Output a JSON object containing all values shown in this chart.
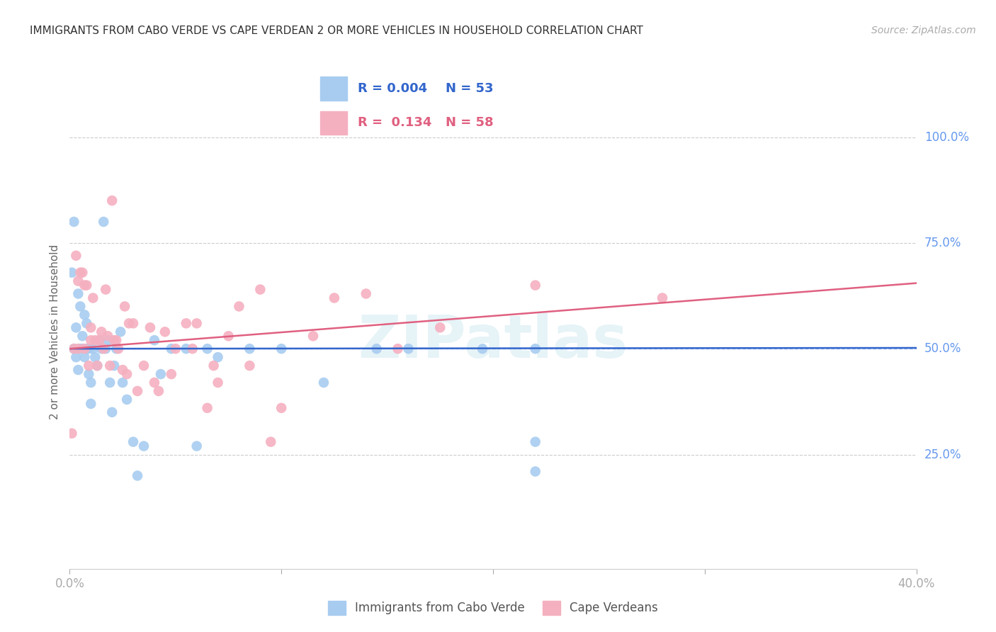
{
  "title": "IMMIGRANTS FROM CABO VERDE VS CAPE VERDEAN 2 OR MORE VEHICLES IN HOUSEHOLD CORRELATION CHART",
  "source": "Source: ZipAtlas.com",
  "ylabel": "2 or more Vehicles in Household",
  "ytick_labels": [
    "100.0%",
    "75.0%",
    "50.0%",
    "25.0%"
  ],
  "ytick_values": [
    1.0,
    0.75,
    0.5,
    0.25
  ],
  "xlim": [
    0.0,
    0.4
  ],
  "ylim": [
    -0.02,
    1.1
  ],
  "series1_label": "Immigrants from Cabo Verde",
  "series1_R": "0.004",
  "series1_N": "53",
  "series1_color": "#A8CCF0",
  "series1_line_color": "#3366CC",
  "series2_label": "Cape Verdeans",
  "series2_R": "0.134",
  "series2_N": "58",
  "series2_color": "#F5B0C0",
  "series2_line_color": "#E06080",
  "background_color": "#ffffff",
  "grid_color": "#cccccc",
  "axis_label_color": "#6699EE",
  "title_color": "#333333",
  "watermark": "ZIPatlas",
  "series1_line_y0": 0.5,
  "series1_line_y1": 0.502,
  "series2_line_y0": 0.5,
  "series2_line_y1": 0.655,
  "series1_x": [
    0.001,
    0.002,
    0.002,
    0.003,
    0.003,
    0.004,
    0.004,
    0.005,
    0.005,
    0.006,
    0.006,
    0.007,
    0.007,
    0.008,
    0.008,
    0.009,
    0.009,
    0.01,
    0.01,
    0.011,
    0.012,
    0.013,
    0.014,
    0.015,
    0.016,
    0.017,
    0.018,
    0.019,
    0.02,
    0.021,
    0.022,
    0.024,
    0.025,
    0.027,
    0.03,
    0.032,
    0.035,
    0.04,
    0.043,
    0.048,
    0.055,
    0.06,
    0.065,
    0.07,
    0.085,
    0.1,
    0.12,
    0.145,
    0.16,
    0.195,
    0.22,
    0.22,
    0.22
  ],
  "series1_y": [
    0.68,
    0.5,
    0.8,
    0.48,
    0.55,
    0.45,
    0.63,
    0.5,
    0.6,
    0.5,
    0.53,
    0.48,
    0.58,
    0.5,
    0.56,
    0.5,
    0.44,
    0.37,
    0.42,
    0.5,
    0.48,
    0.46,
    0.52,
    0.5,
    0.8,
    0.5,
    0.52,
    0.42,
    0.35,
    0.46,
    0.5,
    0.54,
    0.42,
    0.38,
    0.28,
    0.2,
    0.27,
    0.52,
    0.44,
    0.5,
    0.5,
    0.27,
    0.5,
    0.48,
    0.5,
    0.5,
    0.42,
    0.5,
    0.5,
    0.5,
    0.5,
    0.28,
    0.21
  ],
  "series2_x": [
    0.001,
    0.002,
    0.003,
    0.004,
    0.004,
    0.005,
    0.006,
    0.007,
    0.007,
    0.008,
    0.009,
    0.01,
    0.01,
    0.011,
    0.012,
    0.013,
    0.014,
    0.015,
    0.016,
    0.017,
    0.018,
    0.019,
    0.02,
    0.021,
    0.022,
    0.023,
    0.025,
    0.026,
    0.027,
    0.028,
    0.03,
    0.032,
    0.035,
    0.038,
    0.04,
    0.042,
    0.045,
    0.048,
    0.05,
    0.055,
    0.058,
    0.06,
    0.065,
    0.068,
    0.07,
    0.075,
    0.08,
    0.085,
    0.09,
    0.095,
    0.1,
    0.115,
    0.125,
    0.14,
    0.155,
    0.175,
    0.22,
    0.28
  ],
  "series2_y": [
    0.3,
    0.5,
    0.72,
    0.5,
    0.66,
    0.68,
    0.68,
    0.5,
    0.65,
    0.65,
    0.46,
    0.55,
    0.52,
    0.62,
    0.52,
    0.46,
    0.52,
    0.54,
    0.5,
    0.64,
    0.53,
    0.46,
    0.85,
    0.52,
    0.52,
    0.5,
    0.45,
    0.6,
    0.44,
    0.56,
    0.56,
    0.4,
    0.46,
    0.55,
    0.42,
    0.4,
    0.54,
    0.44,
    0.5,
    0.56,
    0.5,
    0.56,
    0.36,
    0.46,
    0.42,
    0.53,
    0.6,
    0.46,
    0.64,
    0.28,
    0.36,
    0.53,
    0.62,
    0.63,
    0.5,
    0.55,
    0.65,
    0.62
  ]
}
